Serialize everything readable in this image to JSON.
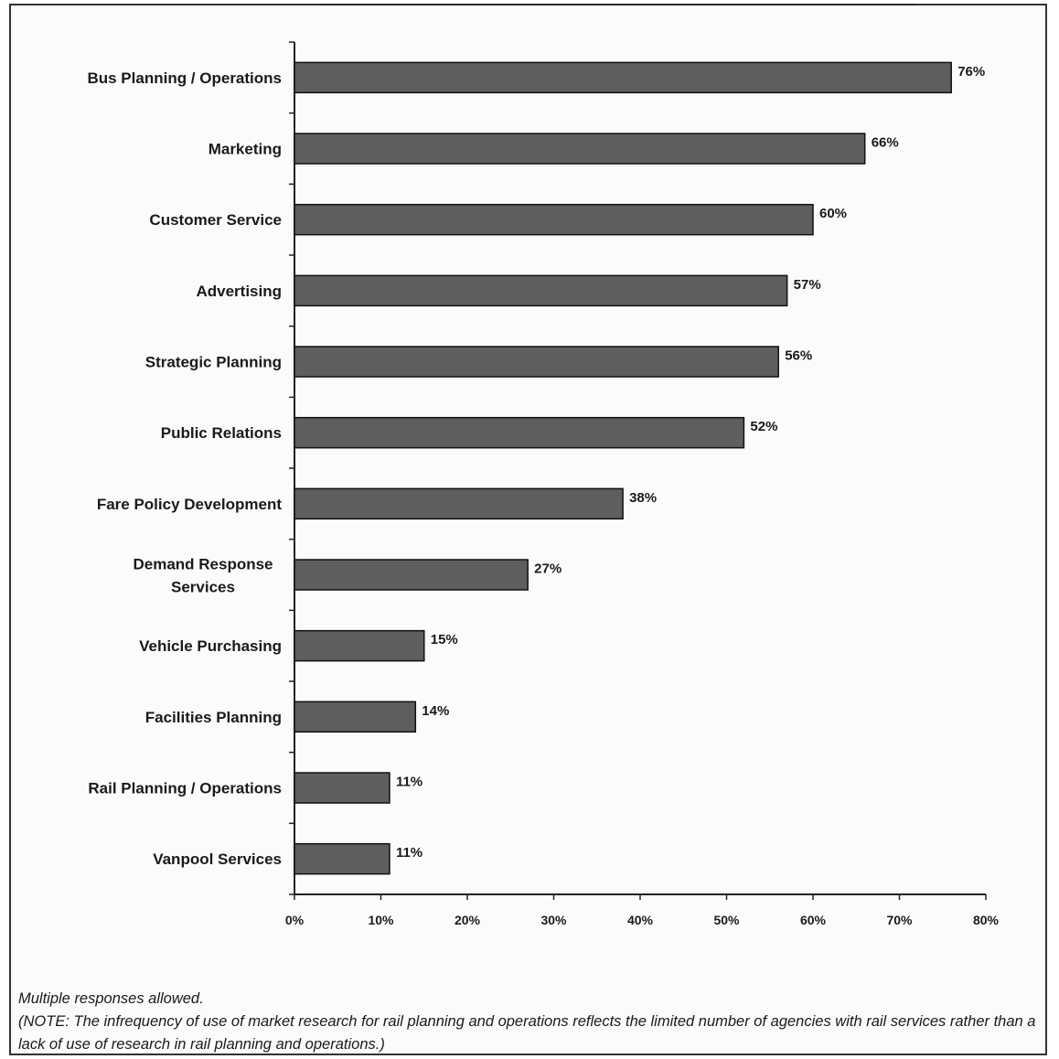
{
  "chart_data": {
    "type": "bar",
    "orientation": "horizontal",
    "categories": [
      "Bus Planning / Operations",
      "Marketing",
      "Customer Service",
      "Advertising",
      "Strategic Planning",
      "Public Relations",
      "Fare Policy Development",
      "Demand Response Services",
      "Vehicle Purchasing",
      "Facilities Planning",
      "Rail Planning / Operations",
      "Vanpool Services"
    ],
    "values": [
      76,
      66,
      60,
      57,
      56,
      52,
      38,
      27,
      15,
      14,
      11,
      11
    ],
    "value_labels": [
      "76%",
      "66%",
      "60%",
      "57%",
      "56%",
      "52%",
      "38%",
      "27%",
      "15%",
      "14%",
      "11%",
      "11%"
    ],
    "xlim": [
      0,
      80
    ],
    "x_ticks": [
      "0%",
      "10%",
      "20%",
      "30%",
      "40%",
      "50%",
      "60%",
      "70%",
      "80%"
    ],
    "title": "",
    "xlabel": "",
    "ylabel": "",
    "grid": false,
    "bar_color": "#5e5e5e"
  },
  "notes": {
    "line1": "Multiple responses allowed.",
    "line2": "(NOTE:  The infrequency of use of market research for rail planning and operations reflects the limited number of agencies with rail services rather than a lack of use of research in rail planning and operations.)"
  }
}
